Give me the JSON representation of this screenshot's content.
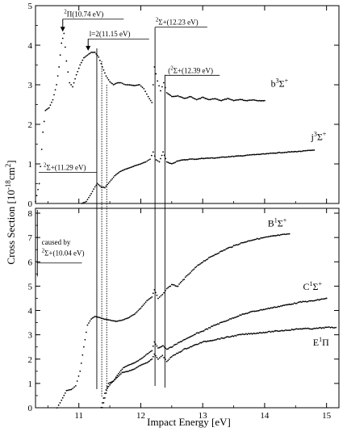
{
  "chart_data": {
    "type": "scatter",
    "xlabel": "Impact Energy [eV]",
    "ylabel": "Cross Section [10",
    "ylabel_exp": "-18",
    "ylabel_unit": "cm",
    "ylabel_unit_exp": "2",
    "ylabel_close": "]",
    "xlim": [
      10.3,
      15.2
    ],
    "x_ticks": [
      11,
      12,
      13,
      14,
      15
    ],
    "panels": [
      {
        "name": "top",
        "ylim": [
          0,
          5
        ],
        "y_ticks": [
          0,
          1,
          2,
          3,
          4,
          5
        ],
        "series": [
          {
            "label_main": "b",
            "label_sup1": "3",
            "label_mid": "Σ",
            "label_sup2": "+",
            "label_x": 14.1,
            "label_y": 2.95,
            "points": [
              [
                10.3,
                0.05
              ],
              [
                10.36,
                0.5
              ],
              [
                10.42,
                1.8
              ],
              [
                10.46,
                2.35
              ],
              [
                10.52,
                2.42
              ],
              [
                10.58,
                2.62
              ],
              [
                10.64,
                3.0
              ],
              [
                10.68,
                3.45
              ],
              [
                10.72,
                4.05
              ],
              [
                10.76,
                4.3
              ],
              [
                10.8,
                3.6
              ],
              [
                10.85,
                3.05
              ],
              [
                10.9,
                2.95
              ],
              [
                10.96,
                3.25
              ],
              [
                11.02,
                3.5
              ],
              [
                11.08,
                3.68
              ],
              [
                11.14,
                3.75
              ],
              [
                11.2,
                3.82
              ],
              [
                11.26,
                3.82
              ],
              [
                11.32,
                3.7
              ],
              [
                11.38,
                3.45
              ],
              [
                11.44,
                3.22
              ],
              [
                11.5,
                3.08
              ],
              [
                11.56,
                3.0
              ],
              [
                11.62,
                3.05
              ],
              [
                11.68,
                3.05
              ],
              [
                11.75,
                3.0
              ],
              [
                11.82,
                3.0
              ],
              [
                11.9,
                2.98
              ],
              [
                11.98,
                3.0
              ],
              [
                12.05,
                2.9
              ],
              [
                12.12,
                2.7
              ],
              [
                12.18,
                2.55
              ],
              [
                12.22,
                3.45
              ],
              [
                12.27,
                3.1
              ],
              [
                12.32,
                2.85
              ],
              [
                12.37,
                3.05
              ],
              [
                12.42,
                2.8
              ],
              [
                12.5,
                2.7
              ],
              [
                12.6,
                2.72
              ],
              [
                12.7,
                2.65
              ],
              [
                12.8,
                2.7
              ],
              [
                12.9,
                2.62
              ],
              [
                13.0,
                2.68
              ],
              [
                13.1,
                2.62
              ],
              [
                13.2,
                2.65
              ],
              [
                13.3,
                2.6
              ],
              [
                13.4,
                2.65
              ],
              [
                13.5,
                2.6
              ],
              [
                13.6,
                2.63
              ],
              [
                13.7,
                2.6
              ],
              [
                13.8,
                2.62
              ],
              [
                13.9,
                2.6
              ],
              [
                14.0,
                2.6
              ]
            ]
          },
          {
            "label_main": "j",
            "label_sup1": "3",
            "label_mid": "Σ",
            "label_sup2": "+",
            "label_x": 14.75,
            "label_y": 1.6,
            "points": [
              [
                11.05,
                0.0
              ],
              [
                11.12,
                0.05
              ],
              [
                11.2,
                0.25
              ],
              [
                11.26,
                0.42
              ],
              [
                11.3,
                0.5
              ],
              [
                11.36,
                0.42
              ],
              [
                11.42,
                0.4
              ],
              [
                11.5,
                0.55
              ],
              [
                11.58,
                0.7
              ],
              [
                11.66,
                0.8
              ],
              [
                11.74,
                0.86
              ],
              [
                11.82,
                0.9
              ],
              [
                11.9,
                0.95
              ],
              [
                12.0,
                1.0
              ],
              [
                12.08,
                1.05
              ],
              [
                12.15,
                1.12
              ],
              [
                12.2,
                1.3
              ],
              [
                12.25,
                1.1
              ],
              [
                12.3,
                1.05
              ],
              [
                12.36,
                1.3
              ],
              [
                12.42,
                1.05
              ],
              [
                12.5,
                1.0
              ],
              [
                12.6,
                1.08
              ],
              [
                12.7,
                1.1
              ],
              [
                12.8,
                1.12
              ],
              [
                12.9,
                1.12
              ],
              [
                13.0,
                1.14
              ],
              [
                13.2,
                1.15
              ],
              [
                13.4,
                1.18
              ],
              [
                13.6,
                1.2
              ],
              [
                13.8,
                1.23
              ],
              [
                14.0,
                1.25
              ],
              [
                14.2,
                1.28
              ],
              [
                14.4,
                1.3
              ],
              [
                14.6,
                1.32
              ],
              [
                14.8,
                1.35
              ]
            ]
          }
        ],
        "annotations": [
          {
            "pre": "",
            "sup": "2",
            "core": "Π(10.74 eV)",
            "x": 10.74,
            "y": 4.3,
            "text_x": 10.76,
            "text_y": 4.72
          },
          {
            "pre": "",
            "sup": "",
            "core": "l=2(11.15 eV)",
            "x": 11.15,
            "y": 3.82,
            "text_x": 11.17,
            "text_y": 4.22
          },
          {
            "pre": "",
            "sup": "2",
            "core": "Σ+(12.23 eV)",
            "x": 12.23,
            "y": 3.5,
            "text_x": 12.24,
            "text_y": 4.52
          },
          {
            "pre": "(",
            "sup": "2",
            "core": "Σ+(12.39 eV)",
            "x": 12.39,
            "y": 3.0,
            "text_x": 12.44,
            "text_y": 3.3
          },
          {
            "pre": "",
            "sup": "2",
            "core": "Σ+(11.29 eV)",
            "x": 11.29,
            "y": 0.5,
            "text_x": 10.43,
            "text_y": 0.85
          }
        ]
      },
      {
        "name": "bottom",
        "ylim": [
          0,
          8.2
        ],
        "y_ticks": [
          0,
          1,
          2,
          3,
          4,
          5,
          6,
          7,
          8
        ],
        "series": [
          {
            "label_main": "B",
            "label_sup1": "1",
            "label_mid": "Σ",
            "label_sup2": "+",
            "label_x": 14.05,
            "label_y": 7.45,
            "points": [
              [
                10.65,
                0.0
              ],
              [
                10.72,
                0.3
              ],
              [
                10.8,
                0.7
              ],
              [
                10.88,
                0.75
              ],
              [
                10.95,
                0.9
              ],
              [
                11.02,
                1.5
              ],
              [
                11.08,
                2.5
              ],
              [
                11.14,
                3.4
              ],
              [
                11.2,
                3.65
              ],
              [
                11.26,
                3.75
              ],
              [
                11.32,
                3.72
              ],
              [
                11.4,
                3.65
              ],
              [
                11.5,
                3.6
              ],
              [
                11.6,
                3.55
              ],
              [
                11.7,
                3.6
              ],
              [
                11.8,
                3.7
              ],
              [
                11.9,
                3.85
              ],
              [
                12.0,
                4.1
              ],
              [
                12.1,
                4.4
              ],
              [
                12.18,
                4.55
              ],
              [
                12.22,
                4.85
              ],
              [
                12.28,
                4.5
              ],
              [
                12.35,
                4.65
              ],
              [
                12.42,
                4.9
              ],
              [
                12.5,
                5.05
              ],
              [
                12.6,
                5.0
              ],
              [
                12.7,
                5.3
              ],
              [
                12.8,
                5.55
              ],
              [
                12.9,
                5.8
              ],
              [
                13.0,
                6.0
              ],
              [
                13.2,
                6.3
              ],
              [
                13.4,
                6.55
              ],
              [
                13.6,
                6.75
              ],
              [
                13.8,
                6.9
              ],
              [
                14.0,
                7.0
              ],
              [
                14.2,
                7.08
              ],
              [
                14.4,
                7.15
              ]
            ]
          },
          {
            "label_main": "C",
            "label_sup1": "1",
            "label_mid": "Σ",
            "label_sup2": "+",
            "label_x": 14.62,
            "label_y": 4.85,
            "points": [
              [
                11.36,
                0.0
              ],
              [
                11.42,
                0.6
              ],
              [
                11.48,
                1.0
              ],
              [
                11.56,
                1.1
              ],
              [
                11.64,
                1.4
              ],
              [
                11.72,
                1.65
              ],
              [
                11.8,
                1.75
              ],
              [
                11.9,
                1.85
              ],
              [
                12.0,
                2.0
              ],
              [
                12.1,
                2.2
              ],
              [
                12.18,
                2.35
              ],
              [
                12.22,
                2.7
              ],
              [
                12.28,
                2.45
              ],
              [
                12.36,
                2.55
              ],
              [
                12.42,
                2.4
              ],
              [
                12.5,
                2.5
              ],
              [
                12.6,
                2.65
              ],
              [
                12.7,
                2.8
              ],
              [
                12.8,
                2.9
              ],
              [
                12.9,
                3.05
              ],
              [
                13.0,
                3.15
              ],
              [
                13.2,
                3.4
              ],
              [
                13.4,
                3.6
              ],
              [
                13.6,
                3.8
              ],
              [
                13.8,
                3.95
              ],
              [
                14.0,
                4.05
              ],
              [
                14.2,
                4.15
              ],
              [
                14.4,
                4.25
              ],
              [
                14.6,
                4.35
              ],
              [
                14.8,
                4.4
              ],
              [
                15.0,
                4.5
              ]
            ]
          },
          {
            "label_main": "E",
            "label_sup1": "1",
            "label_mid": "Π",
            "label_sup2": "",
            "label_x": 14.78,
            "label_y": 2.55,
            "points": [
              [
                11.38,
                0.0
              ],
              [
                11.46,
                0.8
              ],
              [
                11.52,
                1.0
              ],
              [
                11.6,
                1.2
              ],
              [
                11.7,
                1.45
              ],
              [
                11.8,
                1.5
              ],
              [
                11.9,
                1.6
              ],
              [
                12.0,
                1.75
              ],
              [
                12.1,
                1.85
              ],
              [
                12.18,
                2.0
              ],
              [
                12.22,
                2.2
              ],
              [
                12.28,
                2.0
              ],
              [
                12.35,
                2.15
              ],
              [
                12.42,
                1.9
              ],
              [
                12.5,
                2.1
              ],
              [
                12.6,
                2.25
              ],
              [
                12.7,
                2.4
              ],
              [
                12.8,
                2.5
              ],
              [
                12.9,
                2.6
              ],
              [
                13.0,
                2.7
              ],
              [
                13.2,
                2.8
              ],
              [
                13.4,
                2.9
              ],
              [
                13.6,
                3.0
              ],
              [
                13.8,
                3.05
              ],
              [
                14.0,
                3.1
              ],
              [
                14.2,
                3.15
              ],
              [
                14.4,
                3.2
              ],
              [
                14.6,
                3.25
              ],
              [
                14.8,
                3.25
              ],
              [
                15.0,
                3.3
              ],
              [
                15.15,
                3.3
              ]
            ]
          }
        ],
        "annotations": [
          {
            "line1": "caused by",
            "sup": "2",
            "core": "Σ+(10.04 eV)",
            "x": 10.33,
            "text_x": 10.4,
            "text_y1": 6.7,
            "text_y2": 6.25
          }
        ]
      }
    ],
    "vertical_lines": [
      {
        "x": 11.29,
        "style": "solid"
      },
      {
        "x": 11.37,
        "style": "dotted"
      },
      {
        "x": 11.45,
        "style": "dotted"
      },
      {
        "x": 12.23,
        "style": "solid"
      },
      {
        "x": 12.39,
        "style": "solid"
      }
    ]
  }
}
